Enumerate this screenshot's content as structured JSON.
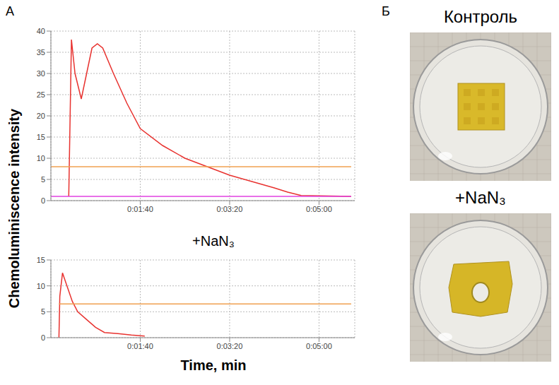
{
  "panel_labels": [
    "А",
    "Б"
  ],
  "y_label": "Chemoluminiscence intensity",
  "x_label": "Time, min",
  "photo_titles": [
    "Контроль",
    "+NaN₃"
  ],
  "chart_data": [
    {
      "type": "line",
      "x": [
        0,
        20,
        23,
        27,
        34,
        40,
        46,
        52,
        58,
        70,
        85,
        100,
        125,
        150,
        175,
        200,
        225,
        250,
        265,
        280,
        336
      ],
      "series": [
        {
          "color": "#e8322f",
          "values": [
            null,
            1,
            38,
            30,
            24,
            30,
            36,
            37,
            36,
            30,
            23,
            17,
            13,
            10,
            8,
            6,
            4.5,
            3,
            2,
            1.2,
            1
          ]
        },
        {
          "color": "#f0a050",
          "values": [
            8,
            8,
            8,
            8,
            8,
            8,
            8,
            8,
            8,
            8,
            8,
            8,
            8,
            8,
            8,
            8,
            8,
            8,
            8,
            8,
            8
          ]
        },
        {
          "color": "#e040e0",
          "values": [
            1,
            1,
            1,
            1,
            1,
            1,
            1,
            1,
            1,
            1,
            1,
            1,
            1,
            1,
            1,
            1,
            1,
            1,
            1,
            1,
            1
          ]
        }
      ],
      "xlim": [
        0,
        340
      ],
      "xticks": [
        {
          "value": 100,
          "label": "0:01:40"
        },
        {
          "value": 200,
          "label": "0:03:20"
        },
        {
          "value": 300,
          "label": "0:05:00"
        }
      ],
      "ylim": [
        0,
        40
      ],
      "yticks": [
        0,
        5,
        10,
        15,
        20,
        25,
        30,
        35,
        40
      ],
      "grid": true
    },
    {
      "type": "line",
      "title": "+NaN₃",
      "x": [
        0,
        9,
        10,
        13,
        18,
        24,
        30,
        40,
        50,
        60,
        75,
        90,
        105,
        336
      ],
      "series": [
        {
          "color": "#e8322f",
          "values": [
            null,
            0,
            8,
            12.5,
            10,
            7,
            5,
            3.5,
            2,
            1,
            0.8,
            0.5,
            0.3,
            null
          ]
        },
        {
          "color": "#f0a050",
          "values": [
            null,
            6.5,
            6.5,
            6.5,
            6.5,
            6.5,
            6.5,
            6.5,
            6.5,
            6.5,
            6.5,
            6.5,
            6.5,
            6.5
          ]
        }
      ],
      "xlim": [
        0,
        340
      ],
      "xticks": [
        {
          "value": 100,
          "label": "0:01:40"
        },
        {
          "value": 200,
          "label": "0:03:20"
        },
        {
          "value": 300,
          "label": "0:05:00"
        }
      ],
      "ylim": [
        0,
        15
      ],
      "yticks": [
        0,
        5,
        10,
        15
      ],
      "grid": true
    }
  ]
}
